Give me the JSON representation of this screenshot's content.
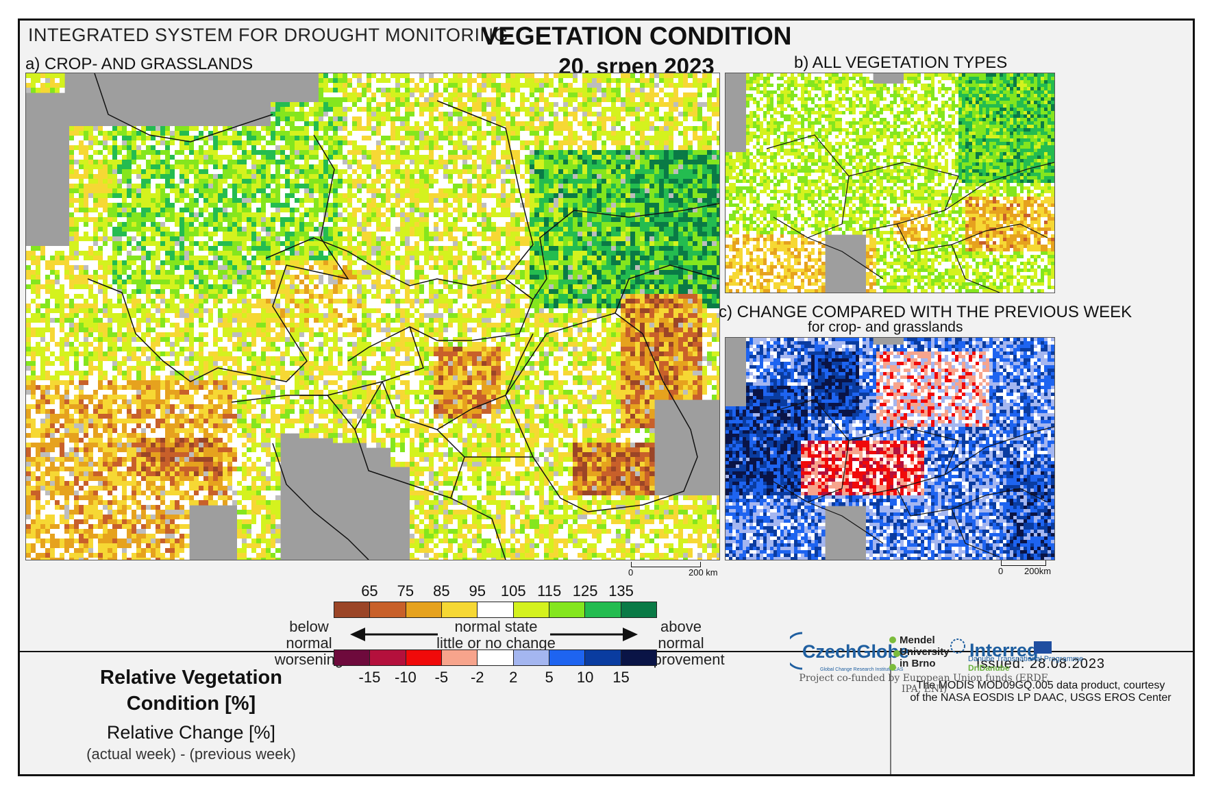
{
  "header": {
    "system_title": "INTEGRATED SYSTEM FOR DROUGHT MONITORING",
    "title": "VEGETATION CONDITION",
    "date": "20. srpen 2023"
  },
  "panels": {
    "a": {
      "label": "a) CROP- AND GRASSLANDS",
      "scale_zero": "0",
      "scale_end": "200 km"
    },
    "b": {
      "label": "b) ALL VEGETATION TYPES"
    },
    "c": {
      "label": "c) CHANGE COMPARED WITH THE PREVIOUS WEEK",
      "sublabel": "for crop- and grasslands",
      "scale_zero": "0",
      "scale_end": "200km"
    }
  },
  "legend": {
    "condition_title": "Relative Vegetation Condition [%]",
    "condition_title_line1": "Relative Vegetation",
    "condition_title_line2": "Condition [%]",
    "change_title": "Relative Change [%]",
    "change_sub": "(actual week) - (previous week)",
    "condition_ticks": [
      "65",
      "75",
      "85",
      "95",
      "105",
      "115",
      "125",
      "135"
    ],
    "condition_colors": [
      "#9b4527",
      "#c8602a",
      "#e6a21e",
      "#f6d834",
      "#ffffff",
      "#d4f21e",
      "#84e61e",
      "#24bc50",
      "#0a7a46"
    ],
    "change_ticks": [
      "-15",
      "-10",
      "-5",
      "-2",
      "2",
      "5",
      "10",
      "15"
    ],
    "change_colors": [
      "#6e0a3c",
      "#b4103c",
      "#f00a0a",
      "#f7a48c",
      "#ffffff",
      "#a4b6f0",
      "#1e64f0",
      "#0a3ca0",
      "#0a1446"
    ],
    "left_top": "below normal",
    "left_bottom": "worsening",
    "center_top": "normal state",
    "center_bottom": "little or no change",
    "right_top": "above normal",
    "right_bottom": "improvement"
  },
  "footer": {
    "issued": "Issued: 28.08.2023",
    "credit_line1": "The MODIS MOD09GQ.005 data product, courtesy",
    "credit_line2": "of the NASA EOSDIS LP DAAC, USGS EROS Center",
    "logo_czechglobe": "CzechGlobe",
    "logo_czechglobe_sub": "Global Change Research Institute CAS",
    "logo_mendel_1": "Mendel",
    "logo_mendel_2": "University",
    "logo_mendel_3": "in Brno",
    "logo_interreg": "Interreg",
    "logo_interreg_sub": "Danube Transnational Programme",
    "logo_dridanube": "DriDanube",
    "funded": "Project co-funded by European Union funds (ERDF, IPA, ENI)"
  }
}
